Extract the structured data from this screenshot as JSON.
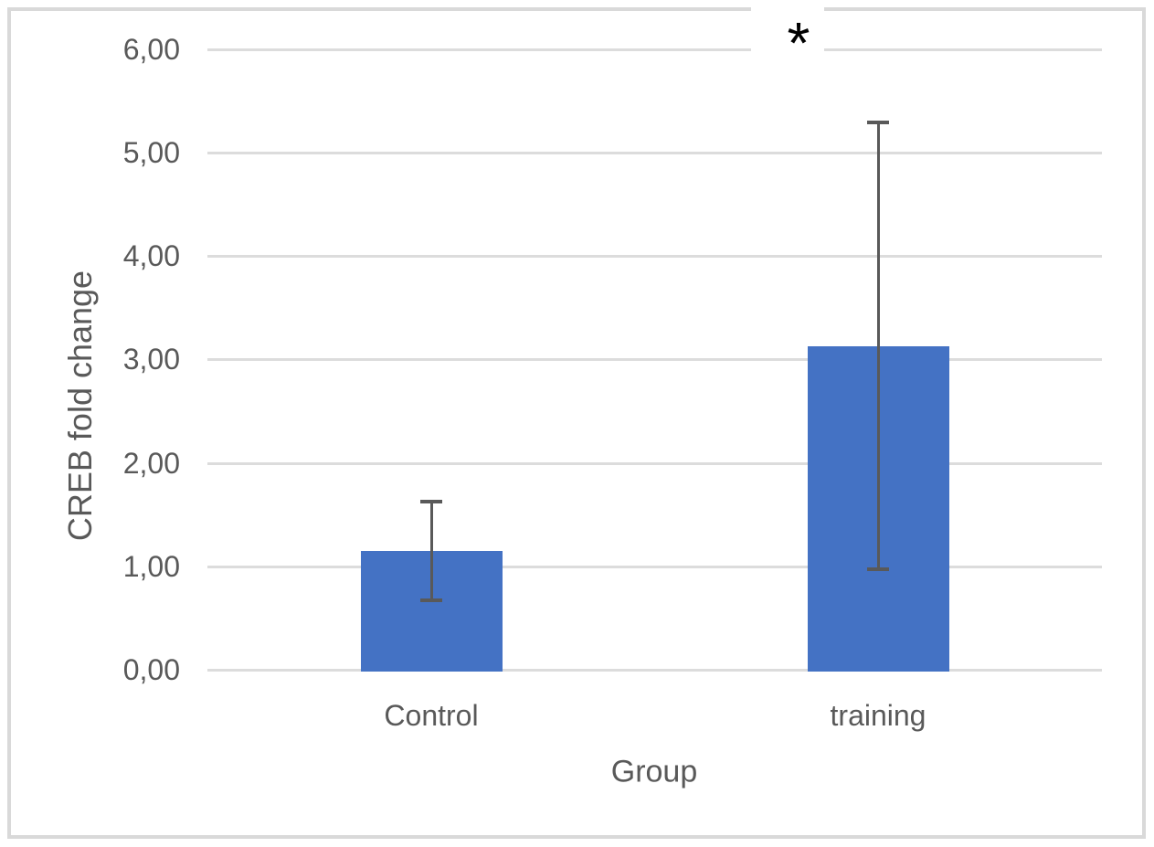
{
  "chart_data": {
    "type": "bar",
    "title": "",
    "xlabel": "Group",
    "ylabel": "CREB fold change",
    "categories": [
      "Control",
      "training"
    ],
    "series": [
      {
        "name": "CREB fold change",
        "values": [
          1.15,
          3.13
        ],
        "error_bars": [
          0.48,
          2.16
        ]
      }
    ],
    "ylim": [
      0,
      6
    ],
    "ytick_step": 1,
    "ytick_labels": [
      "0,00",
      "1,00",
      "2,00",
      "3,00",
      "4,00",
      "5,00",
      "6,00"
    ],
    "decimal_separator": ",",
    "grid": true,
    "legend": false,
    "annotations": {
      "significance_marker": "*"
    },
    "colors": {
      "bar_fill": "#4472c4",
      "error_bar": "#595959",
      "gridline": "#dcdcdc",
      "frame_border": "#d9d9d9",
      "axis_text": "#595959",
      "marker_text": "#000000",
      "background": "#ffffff"
    }
  }
}
